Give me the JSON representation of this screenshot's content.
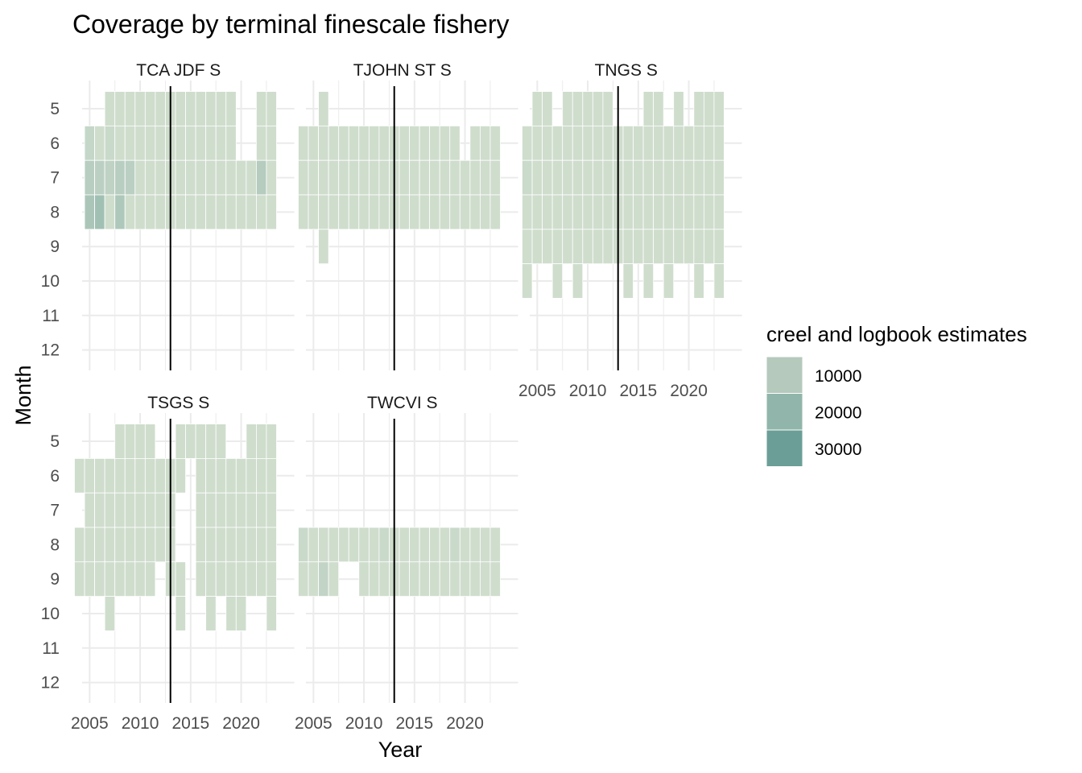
{
  "chart_data": {
    "type": "heatmap",
    "title": "Coverage by terminal finescale fishery",
    "xlabel": "Year",
    "ylabel": "Month",
    "xlim": [
      2004,
      2024
    ],
    "x_ticks": [
      "2005",
      "2010",
      "2015",
      "2020"
    ],
    "y_ticks": [
      "5",
      "6",
      "7",
      "8",
      "9",
      "10",
      "11",
      "12"
    ],
    "vline_x": 2013,
    "grid": true,
    "legend": {
      "title": "creel and logbook estimates",
      "position": "right",
      "entries": [
        {
          "label": "10000",
          "value": 10000,
          "color": "#b5c9bd"
        },
        {
          "label": "20000",
          "value": 20000,
          "color": "#91b5aa"
        },
        {
          "label": "30000",
          "value": 30000,
          "color": "#6b9e97"
        }
      ],
      "color_low": "#d6e1d1",
      "color_high": "#6b9e97",
      "value_low": 1,
      "value_high": 32000
    },
    "panels": [
      {
        "name": "TCA JDF S",
        "default_value": 2000,
        "coverage": {
          "5": [
            2007,
            2008,
            2009,
            2010,
            2011,
            2012,
            2013,
            2014,
            2015,
            2016,
            2017,
            2018,
            2019,
            2022,
            2023
          ],
          "6": [
            2005,
            2006,
            2007,
            2008,
            2009,
            2010,
            2011,
            2012,
            2013,
            2014,
            2015,
            2016,
            2017,
            2018,
            2019,
            2022,
            2023
          ],
          "7": [
            2005,
            2006,
            2007,
            2008,
            2009,
            2010,
            2011,
            2012,
            2013,
            2014,
            2015,
            2016,
            2017,
            2018,
            2019,
            2020,
            2021,
            2022,
            2023
          ],
          "8": [
            2005,
            2006,
            2007,
            2008,
            2009,
            2010,
            2011,
            2012,
            2013,
            2014,
            2015,
            2016,
            2017,
            2018,
            2019,
            2020,
            2021,
            2022,
            2023
          ]
        },
        "values": {
          "2005-6": 5000,
          "2005-7": 9000,
          "2005-8": 13000,
          "2006-7": 8000,
          "2006-8": 16000,
          "2007-6": 4000,
          "2007-7": 7000,
          "2008-7": 9000,
          "2008-8": 12000,
          "2009-7": 8000,
          "2022-7": 10000
        }
      },
      {
        "name": "TJOHN ST S",
        "default_value": 2000,
        "coverage": {
          "5": [
            2006
          ],
          "6": [
            2004,
            2005,
            2006,
            2007,
            2008,
            2009,
            2010,
            2011,
            2012,
            2013,
            2014,
            2015,
            2016,
            2017,
            2018,
            2019,
            2021,
            2022,
            2023
          ],
          "7": [
            2004,
            2005,
            2006,
            2007,
            2008,
            2009,
            2010,
            2011,
            2012,
            2013,
            2014,
            2015,
            2016,
            2017,
            2018,
            2019,
            2020,
            2021,
            2022,
            2023
          ],
          "8": [
            2004,
            2005,
            2006,
            2007,
            2008,
            2009,
            2010,
            2011,
            2012,
            2013,
            2014,
            2015,
            2016,
            2017,
            2018,
            2019,
            2020,
            2021,
            2022,
            2023
          ],
          "9": [
            2006
          ]
        },
        "values": {}
      },
      {
        "name": "TNGS S",
        "default_value": 2000,
        "coverage": {
          "5": [
            2005,
            2006,
            2008,
            2009,
            2010,
            2011,
            2012,
            2016,
            2017,
            2019,
            2021,
            2022,
            2023
          ],
          "6": [
            2004,
            2005,
            2006,
            2007,
            2008,
            2009,
            2010,
            2011,
            2012,
            2013,
            2014,
            2015,
            2016,
            2017,
            2018,
            2019,
            2020,
            2021,
            2022,
            2023
          ],
          "7": [
            2004,
            2005,
            2006,
            2007,
            2008,
            2009,
            2010,
            2011,
            2012,
            2013,
            2014,
            2015,
            2016,
            2017,
            2018,
            2019,
            2020,
            2021,
            2022,
            2023
          ],
          "8": [
            2004,
            2005,
            2006,
            2007,
            2008,
            2009,
            2010,
            2011,
            2012,
            2013,
            2014,
            2015,
            2016,
            2017,
            2018,
            2019,
            2020,
            2021,
            2022,
            2023
          ],
          "9": [
            2004,
            2005,
            2006,
            2007,
            2008,
            2009,
            2010,
            2011,
            2012,
            2013,
            2014,
            2015,
            2016,
            2017,
            2018,
            2019,
            2020,
            2021,
            2022,
            2023
          ],
          "10": [
            2004,
            2007,
            2009,
            2014,
            2016,
            2018,
            2021,
            2023
          ]
        },
        "values": {
          "2004-7": 3500
        }
      },
      {
        "name": "TSGS S",
        "default_value": 2000,
        "coverage": {
          "5": [
            2008,
            2009,
            2010,
            2011,
            2014,
            2015,
            2016,
            2017,
            2018,
            2021,
            2022,
            2023
          ],
          "6": [
            2004,
            2005,
            2006,
            2007,
            2008,
            2009,
            2010,
            2011,
            2012,
            2013,
            2014,
            2016,
            2017,
            2018,
            2019,
            2020,
            2021,
            2022,
            2023
          ],
          "7": [
            2005,
            2006,
            2007,
            2008,
            2009,
            2010,
            2011,
            2012,
            2013,
            2016,
            2017,
            2018,
            2019,
            2020,
            2021,
            2022,
            2023
          ],
          "8": [
            2004,
            2005,
            2006,
            2007,
            2008,
            2009,
            2010,
            2011,
            2012,
            2013,
            2016,
            2017,
            2018,
            2019,
            2020,
            2021,
            2022,
            2023
          ],
          "9": [
            2004,
            2005,
            2006,
            2007,
            2008,
            2009,
            2010,
            2011,
            2013,
            2014,
            2016,
            2017,
            2018,
            2019,
            2020,
            2021,
            2022,
            2023
          ],
          "10": [
            2007,
            2014,
            2017,
            2019,
            2020,
            2023
          ]
        },
        "values": {}
      },
      {
        "name": "TWCVI S",
        "default_value": 2000,
        "coverage": {
          "8": [
            2004,
            2005,
            2006,
            2007,
            2008,
            2009,
            2010,
            2011,
            2012,
            2013,
            2014,
            2015,
            2016,
            2017,
            2018,
            2019,
            2020,
            2021,
            2022,
            2023
          ],
          "9": [
            2004,
            2005,
            2006,
            2007,
            2010,
            2011,
            2012,
            2013,
            2014,
            2015,
            2016,
            2017,
            2018,
            2019,
            2020,
            2021,
            2022,
            2023
          ]
        },
        "values": {
          "2004-8": 4000,
          "2006-9": 6000,
          "2012-8": 4000,
          "2019-8": 4000
        }
      }
    ]
  }
}
